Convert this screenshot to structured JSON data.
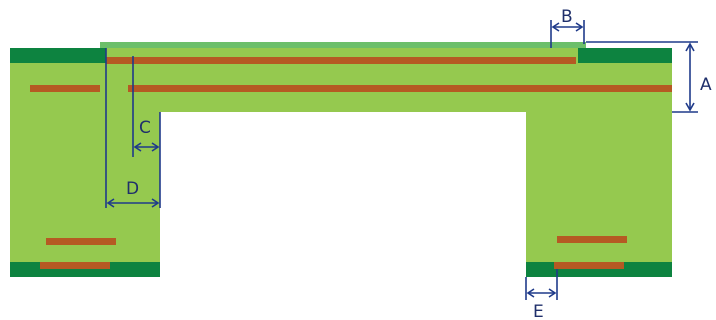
{
  "colors": {
    "substrate": "#95c94f",
    "coverlay": "#6cbf6a",
    "solder_mask": "#0d8340",
    "copper": "#b55a23",
    "dimension_line": "#1f3a8a",
    "background": "#ffffff"
  },
  "dimensions": {
    "A": "A",
    "B": "B",
    "C": "C",
    "D": "D",
    "E": "E"
  }
}
